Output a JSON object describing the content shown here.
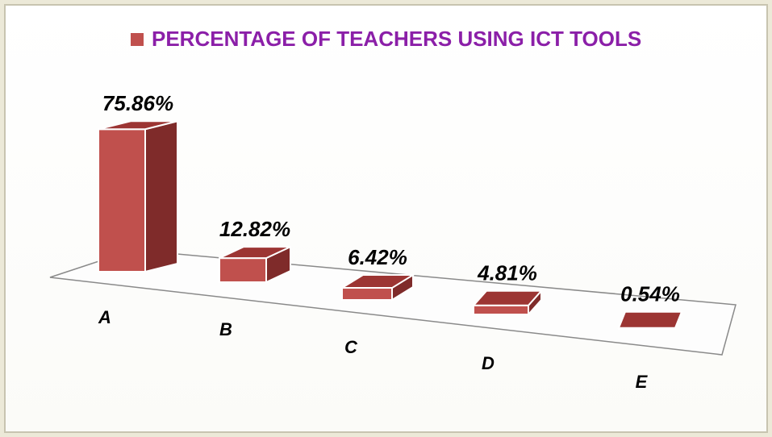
{
  "chart_data": {
    "type": "bar3d",
    "categories": [
      "A",
      "B",
      "C",
      "D",
      "E"
    ],
    "series": [
      {
        "name": "PERCENTAGE OF TEACHERS USING ICT TOOLS",
        "color": "#c0504d",
        "values": [
          75.86,
          12.82,
          6.42,
          4.81,
          0.54
        ],
        "value_labels": [
          "75.86%",
          "12.82%",
          "6.42%",
          "4.81%",
          "0.54%"
        ]
      }
    ],
    "legend": "top"
  }
}
